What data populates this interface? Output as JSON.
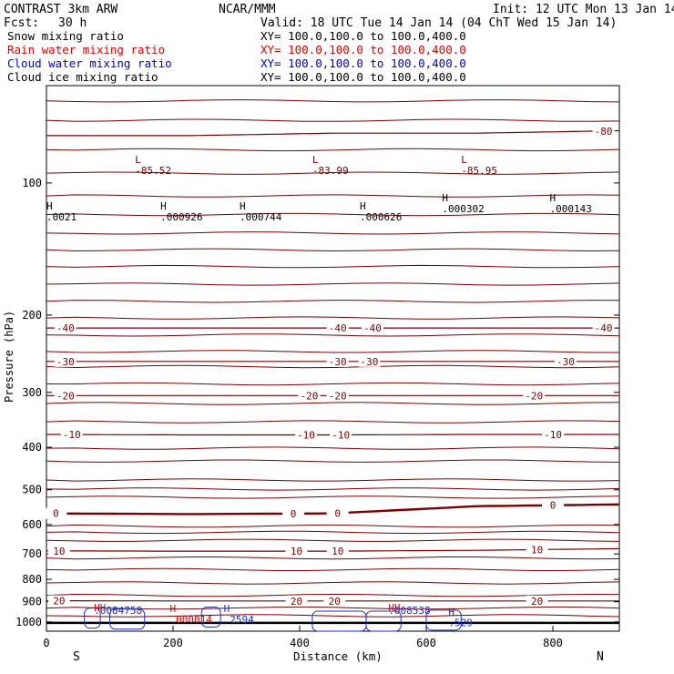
{
  "header": {
    "model": "CONTRAST  3km ARW",
    "org": "NCAR/MMM",
    "init": "Init: 12 UTC Mon 13 Jan 14",
    "fcst_label": "Fcst:",
    "fcst_value": "30 h",
    "valid": "Valid: 18 UTC Tue 14 Jan 14 (04 ChT Wed 15 Jan 14)"
  },
  "fields": [
    {
      "name": "Snow mixing ratio",
      "xy": "XY= 100.0,100.0 to 100.0,400.0",
      "color": "#000000"
    },
    {
      "name": "Rain water mixing ratio",
      "xy": "XY= 100.0,100.0 to 100.0,400.0",
      "color": "#dd0000"
    },
    {
      "name": "Cloud water mixing ratio",
      "xy": "XY= 100.0,100.0 to 100.0,400.0",
      "color": "#0000cc"
    },
    {
      "name": "Cloud ice mixing ratio",
      "xy": "XY= 100.0,100.0 to 100.0,400.0",
      "color": "#000000"
    }
  ],
  "colors": {
    "temperature": "#7a0000",
    "rain": "#dd0000",
    "cloud": "#1a2fc0",
    "axis": "#000000"
  },
  "chart_data": {
    "type": "cross-section",
    "xlabel": "Distance (km)",
    "ylabel": "Pressure (hPa)",
    "xlim": [
      0,
      905
    ],
    "ylim": [
      1050,
      60
    ],
    "x_ticks": [
      0,
      200,
      400,
      600,
      800
    ],
    "y_ticks": [
      100,
      200,
      300,
      400,
      500,
      600,
      700,
      800,
      900,
      1000
    ],
    "end_labels": {
      "left": "S",
      "right": "N"
    },
    "isotherms": [
      {
        "value": -80,
        "p": [
          78,
          78,
          77,
          77,
          76
        ],
        "labels": [
          {
            "text": "-80",
            "x": 880
          }
        ]
      },
      {
        "value": -40,
        "p": [
          214,
          214,
          214,
          214,
          214
        ],
        "labels": [
          {
            "text": "-40",
            "x": 30
          },
          {
            "text": "-40",
            "x": 460
          },
          {
            "text": "-40",
            "x": 515
          },
          {
            "text": "-40",
            "x": 880
          }
        ]
      },
      {
        "value": -30,
        "p": [
          255,
          255,
          255,
          255,
          255
        ],
        "labels": [
          {
            "text": "-30",
            "x": 30
          },
          {
            "text": "-30",
            "x": 460
          },
          {
            "text": "-30",
            "x": 510
          },
          {
            "text": "-30",
            "x": 820
          }
        ]
      },
      {
        "value": -20,
        "p": [
          305,
          305,
          305,
          305,
          305
        ],
        "labels": [
          {
            "text": "-20",
            "x": 30
          },
          {
            "text": "-20",
            "x": 415
          },
          {
            "text": "-20",
            "x": 460
          },
          {
            "text": "-20",
            "x": 770
          }
        ]
      },
      {
        "value": -10,
        "p": [
          374,
          375,
          375,
          374,
          374
        ],
        "labels": [
          {
            "text": "-10",
            "x": 40
          },
          {
            "text": "-10",
            "x": 410
          },
          {
            "text": "-10",
            "x": 465
          },
          {
            "text": "-10",
            "x": 800
          }
        ]
      },
      {
        "value": 0,
        "p": [
          566,
          568,
          566,
          545,
          540
        ],
        "labels": [
          {
            "text": "0",
            "x": 15
          },
          {
            "text": "0",
            "x": 390
          },
          {
            "text": "0",
            "x": 460
          },
          {
            "text": "0",
            "x": 800
          }
        ]
      },
      {
        "value": 10,
        "p": [
          689,
          690,
          690,
          687,
          681
        ],
        "labels": [
          {
            "text": "10",
            "x": 20
          },
          {
            "text": "10",
            "x": 395
          },
          {
            "text": "10",
            "x": 460
          },
          {
            "text": "10",
            "x": 775
          }
        ]
      },
      {
        "value": 20,
        "p": [
          895,
          896,
          896,
          896,
          896
        ],
        "labels": [
          {
            "text": "20",
            "x": 20
          },
          {
            "text": "20",
            "x": 395
          },
          {
            "text": "20",
            "x": 455
          },
          {
            "text": "20",
            "x": 775
          }
        ]
      }
    ],
    "extrema": [
      {
        "letter": "L",
        "value": "-85.52",
        "x": 140,
        "p": 90,
        "color": "temperature"
      },
      {
        "letter": "L",
        "value": "-83.99",
        "x": 420,
        "p": 90,
        "color": "temperature"
      },
      {
        "letter": "L",
        "value": "-85.95",
        "x": 655,
        "p": 90,
        "color": "temperature"
      },
      {
        "letter": "H",
        "value": ".0021",
        "x": 0,
        "p": 115,
        "color": "axis"
      },
      {
        "letter": "H",
        "value": ".000926",
        "x": 180,
        "p": 115,
        "color": "axis"
      },
      {
        "letter": "H",
        "value": ".000744",
        "x": 305,
        "p": 115,
        "color": "axis"
      },
      {
        "letter": "H",
        "value": ".000626",
        "x": 495,
        "p": 115,
        "color": "axis"
      },
      {
        "letter": "H",
        "value": ".000302",
        "x": 625,
        "p": 110,
        "color": "axis"
      },
      {
        "letter": "H",
        "value": ".000143",
        "x": 795,
        "p": 110,
        "color": "axis"
      },
      {
        "letter": "H",
        "value": ".000014",
        "x": 195,
        "p": 950,
        "color": "rain"
      },
      {
        "letter": "H",
        "value": ".2594",
        "x": 280,
        "p": 950,
        "color": "cloud"
      },
      {
        "letter": "H",
        "value": ".529",
        "x": 635,
        "p": 965,
        "color": "cloud"
      }
    ],
    "overlapping_labels": [
      "HH",
      ".0084758",
      "HH",
      ".008538"
    ]
  }
}
